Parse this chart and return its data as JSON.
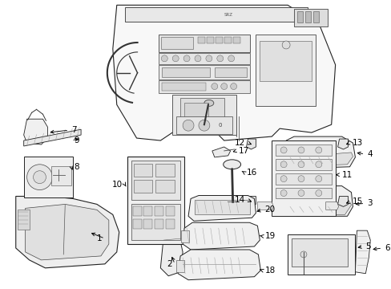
{
  "bg_color": "#ffffff",
  "fig_width": 4.89,
  "fig_height": 3.6,
  "dpi": 100,
  "line_color": "#000000",
  "text_color": "#000000",
  "label_fontsize": 7.5
}
